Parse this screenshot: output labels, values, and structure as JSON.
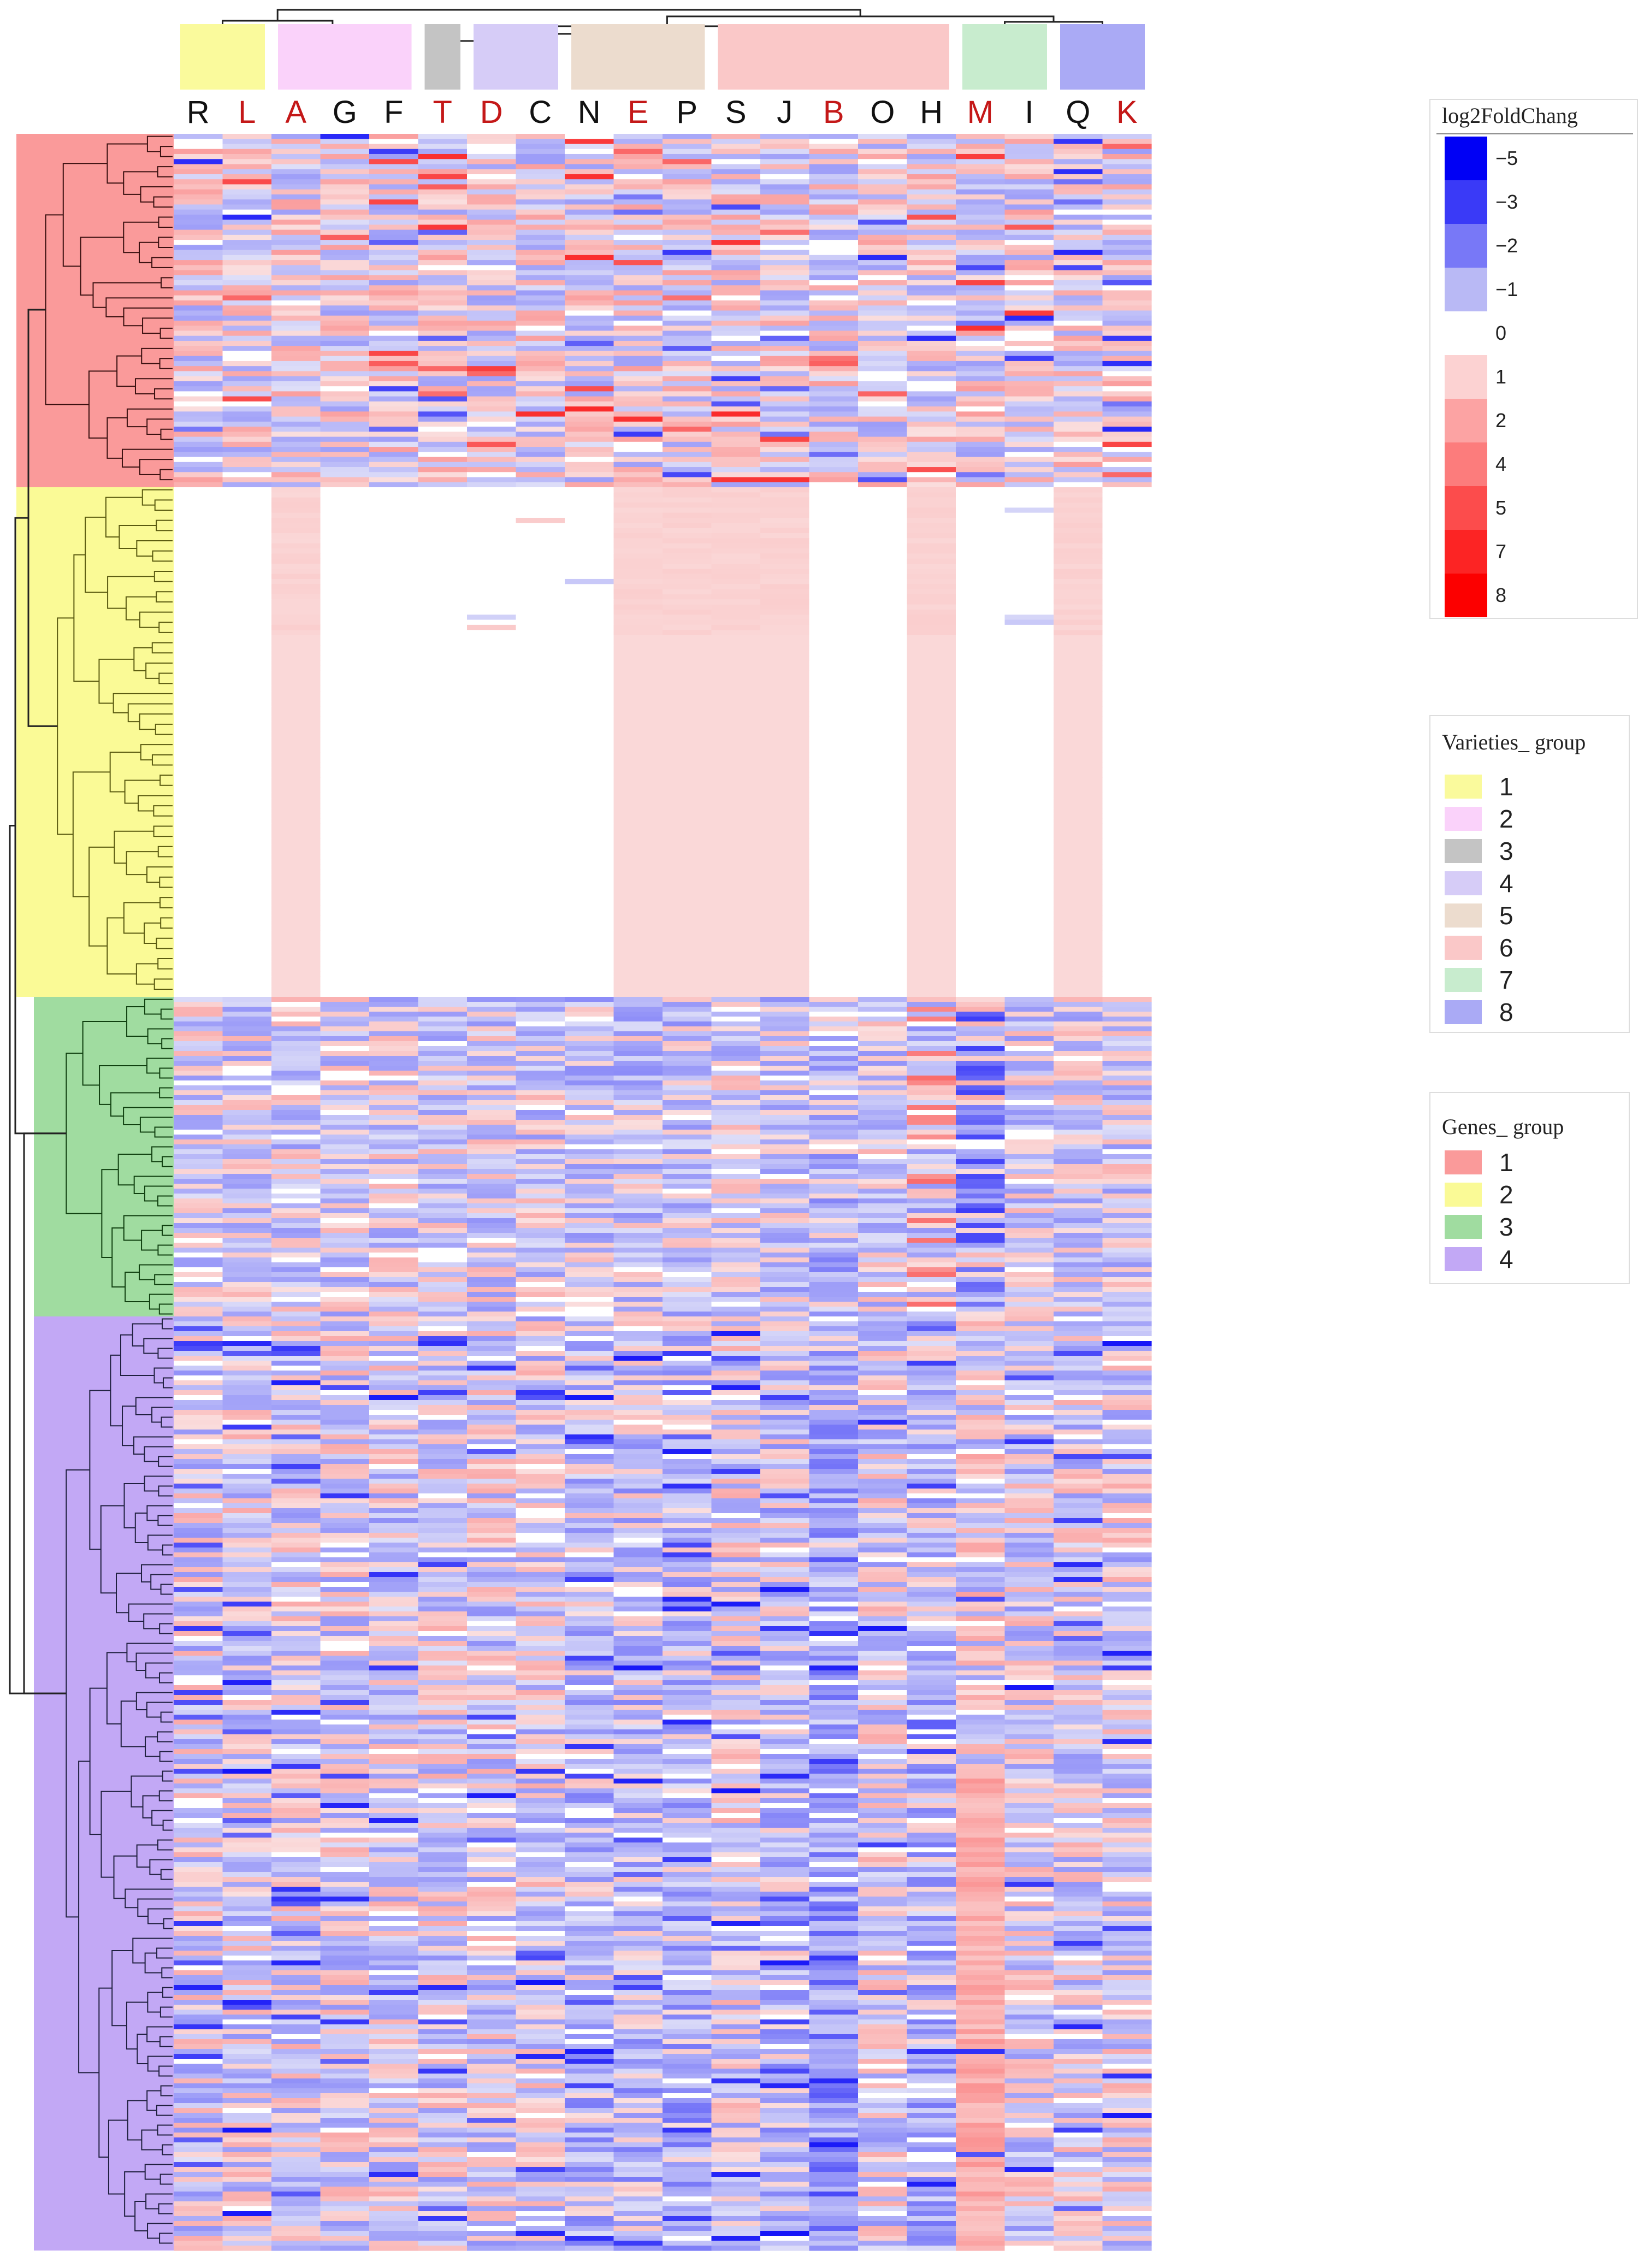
{
  "chart_data": {
    "type": "heatmap",
    "title": "",
    "columns": [
      "R",
      "L",
      "A",
      "G",
      "F",
      "T",
      "D",
      "C",
      "N",
      "E",
      "P",
      "S",
      "J",
      "B",
      "O",
      "H",
      "M",
      "I",
      "Q",
      "K"
    ],
    "highlighted_columns": [
      "L",
      "A",
      "T",
      "D",
      "E",
      "B",
      "M",
      "K"
    ],
    "column_groups": [
      1,
      1,
      2,
      2,
      2,
      3,
      4,
      4,
      5,
      5,
      5,
      6,
      6,
      6,
      6,
      6,
      7,
      7,
      8,
      8
    ],
    "color_scale": {
      "title": "log2FoldChang",
      "ticks": [
        "−5",
        "−3",
        "−2",
        "−1",
        "0",
        "1",
        "2",
        "4",
        "5",
        "7",
        "8"
      ],
      "colors": [
        "#0000f5",
        "#3a3af7",
        "#7878f7",
        "#b9b9f5",
        "#ffffff",
        "#fcd2d2",
        "#fca3a3",
        "#fc7c7c",
        "#fc4c4c",
        "#fc2424",
        "#fc0000"
      ]
    },
    "varieties_legend": {
      "title": "Varieties_ group",
      "items": [
        {
          "label": "1",
          "color": "#fafa9c"
        },
        {
          "label": "2",
          "color": "#fad2fa"
        },
        {
          "label": "3",
          "color": "#c4c4c4"
        },
        {
          "label": "4",
          "color": "#d6ccf7"
        },
        {
          "label": "5",
          "color": "#ecdcce"
        },
        {
          "label": "6",
          "color": "#fac8c8"
        },
        {
          "label": "7",
          "color": "#c8ecce"
        },
        {
          "label": "8",
          "color": "#aaaaf5"
        }
      ]
    },
    "genes_legend": {
      "title": "Genes_ group",
      "items": [
        {
          "label": "1",
          "color": "#fa9a9a"
        },
        {
          "label": "2",
          "color": "#fafa96"
        },
        {
          "label": "3",
          "color": "#a0dca0"
        },
        {
          "label": "4",
          "color": "#c2a8f5"
        }
      ]
    },
    "gene_groups": [
      {
        "group": "1",
        "rows": 70,
        "pattern": "mixed"
      },
      {
        "group": "2",
        "rows": 100,
        "pattern": "near-zero"
      },
      {
        "group": "3",
        "rows": 65,
        "pattern": "mixed-blue"
      },
      {
        "group": "4",
        "rows": 190,
        "pattern": "mostly-blue"
      }
    ]
  }
}
